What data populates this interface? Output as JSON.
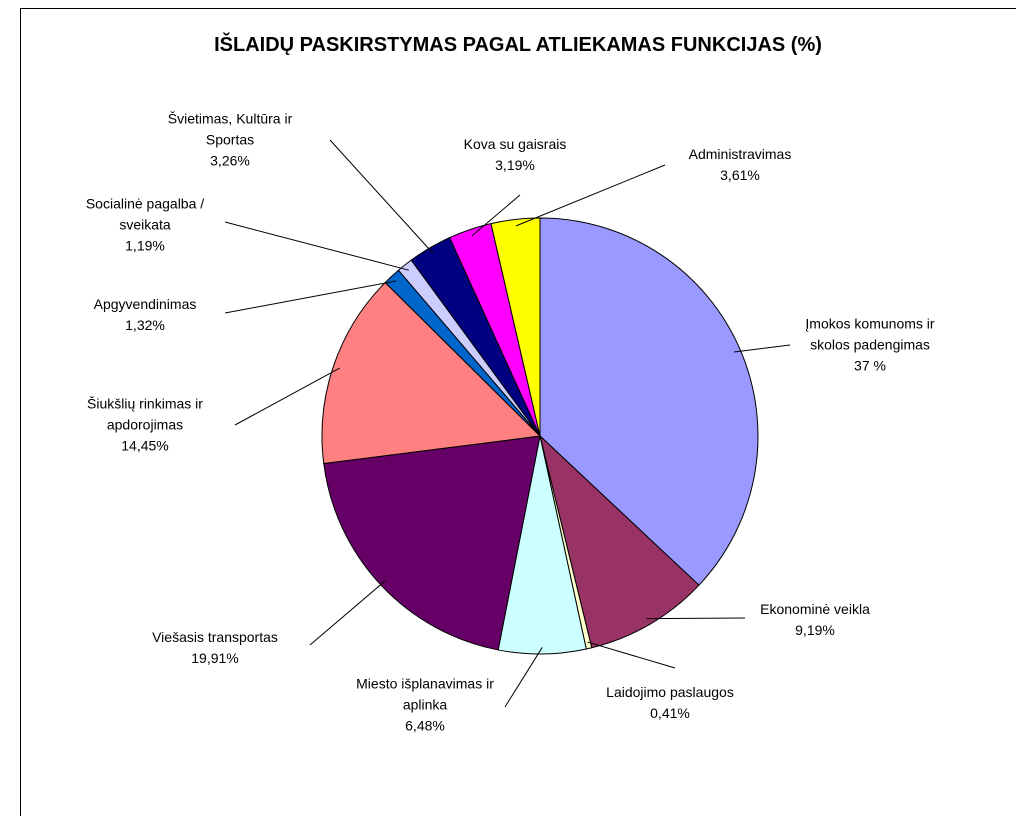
{
  "chart_data": {
    "type": "pie",
    "title": "IŠLAIDŲ PASKIRSTYMAS PAGAL ATLIEKAMAS FUNKCIJAS (%)",
    "categories": [
      "Įmokos komunoms ir skolos padengimas",
      "Ekonominė veikla",
      "Laidojimo paslaugos",
      "Miesto išplanavimas ir aplinka",
      "Viešasis transportas",
      "Šiukšlių rinkimas ir apdorojimas",
      "Apgyvendinimas",
      "Socialinė pagalba / sveikata",
      "Švietimas, Kultūra ir Sportas",
      "Kova su gaisrais",
      "Administravimas"
    ],
    "values": [
      37,
      9.19,
      0.41,
      6.48,
      19.91,
      14.45,
      1.32,
      1.19,
      3.26,
      3.19,
      3.61
    ],
    "value_labels": [
      "37 %",
      "9,19%",
      "0,41%",
      "6,48%",
      "19,91%",
      "14,45%",
      "1,32%",
      "1,19%",
      "3,26%",
      "3,19%",
      "3,61%"
    ],
    "colors": [
      "#9999ff",
      "#993366",
      "#ffffcc",
      "#ccffff",
      "#660066",
      "#ff8080",
      "#0066cc",
      "#ccccff",
      "#000080",
      "#ff00ff",
      "#ffff00"
    ]
  }
}
